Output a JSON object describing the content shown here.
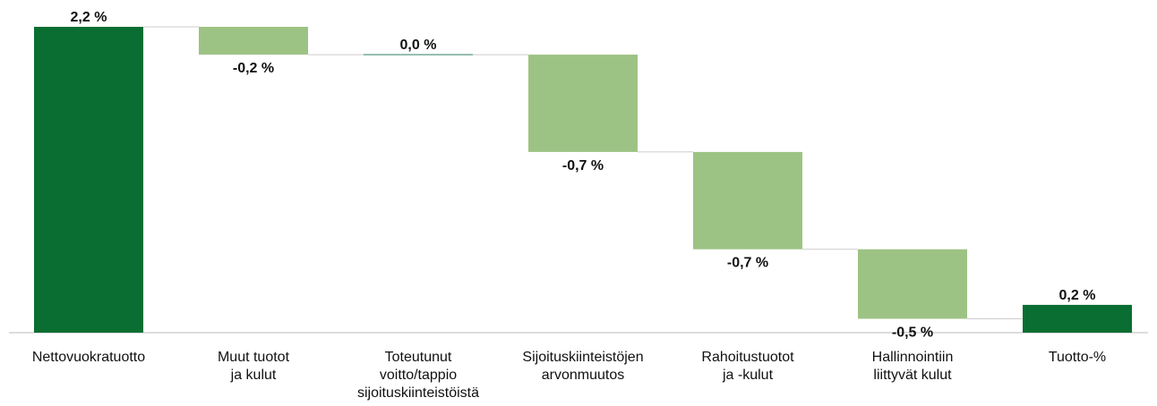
{
  "chart_data": {
    "type": "waterfall",
    "categories": [
      "Nettovuokratuotto",
      "Muut tuotot\nja kulut",
      "Toteutunut\nvoitto/tappio\nsijoituskiinteistöistä",
      "Sijoituskiinteistöjen\narvonmuutos",
      "Rahoitustuotot\nja -kulut",
      "Hallinnointiin\nliittyvät kulut",
      "Tuotto-%"
    ],
    "values": [
      2.2,
      -0.2,
      0.0,
      -0.7,
      -0.7,
      -0.5,
      0.2
    ],
    "value_labels": [
      "2,2 %",
      "-0,2 %",
      "0,0 %",
      "-0,7 %",
      "-0,7 %",
      "-0,5 %",
      "0,2 %"
    ],
    "measure": [
      "absolute",
      "relative",
      "relative",
      "relative",
      "relative",
      "relative",
      "total"
    ],
    "total_color": "#0a6e32",
    "change_color": "#9dc384"
  }
}
